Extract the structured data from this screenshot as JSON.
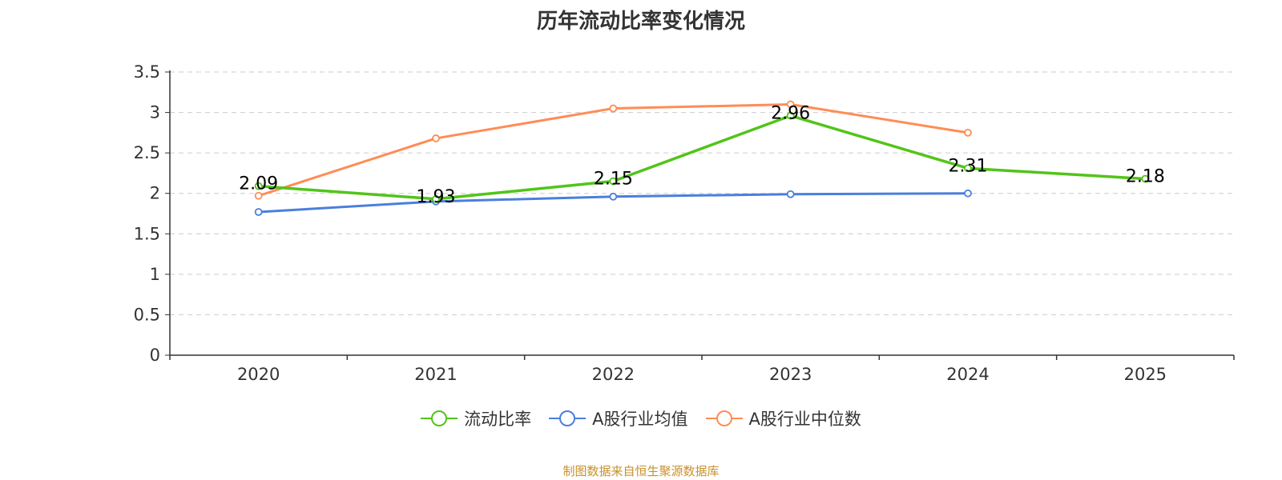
{
  "chart_data": {
    "type": "line",
    "title": "历年流动比率变化情况",
    "categories": [
      "2020",
      "2021",
      "2022",
      "2023",
      "2024",
      "2025"
    ],
    "ylim": [
      0,
      3.5
    ],
    "yticks": [
      "0",
      "0.5",
      "1",
      "1.5",
      "2",
      "2.5",
      "3",
      "3.5"
    ],
    "grid": true,
    "legend_position": "bottom",
    "series": [
      {
        "name": "流动比率",
        "color": "#52c41a",
        "values": [
          2.09,
          1.93,
          2.15,
          2.96,
          2.31,
          2.18
        ],
        "labels": [
          "2.09",
          "1.93",
          "2.15",
          "2.96",
          "2.31",
          "2.18"
        ]
      },
      {
        "name": "A股行业均值",
        "color": "#4a7fdc",
        "values": [
          1.77,
          1.9,
          1.96,
          1.99,
          2.0,
          null
        ]
      },
      {
        "name": "A股行业中位数",
        "color": "#ff8c55",
        "values": [
          1.97,
          2.68,
          3.05,
          3.1,
          2.75,
          null
        ]
      }
    ],
    "source": "制图数据来自恒生聚源数据库"
  }
}
